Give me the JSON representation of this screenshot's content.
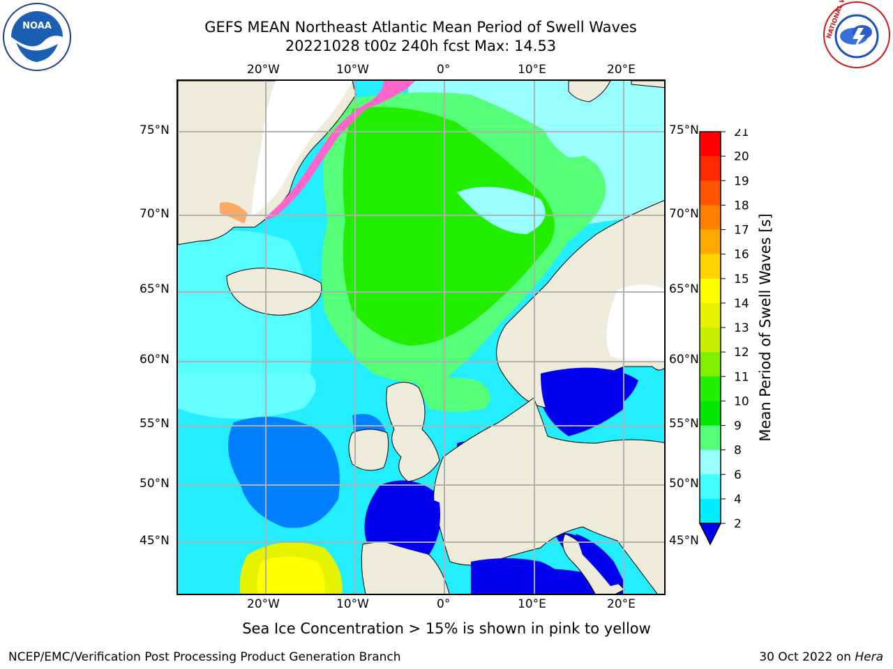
{
  "title": {
    "line1": "GEFS MEAN Northeast Atlantic Mean Period of Swell Waves",
    "line2": "20221028 t00z 240h fcst   Max: 14.53"
  },
  "map": {
    "lon_labels": [
      "20°W",
      "10°W",
      "0°",
      "10°E",
      "20°E"
    ],
    "lat_labels": [
      "75°N",
      "70°N",
      "65°N",
      "60°N",
      "55°N",
      "50°N",
      "45°N"
    ]
  },
  "colorbar": {
    "label": "Mean Period of Swell Waves [s]",
    "ticks": [
      "21",
      "20",
      "19",
      "18",
      "17",
      "16",
      "15",
      "14",
      "13",
      "12",
      "11",
      "10",
      "9",
      "8",
      "6",
      "4",
      "2"
    ],
    "colors": [
      "#ff0000",
      "#ff2a00",
      "#ff5500",
      "#ff7f00",
      "#ffaa00",
      "#ffd400",
      "#ffff00",
      "#e5f200",
      "#c7ef00",
      "#80f000",
      "#22ee00",
      "#00e600",
      "#55ff77",
      "#99ffff",
      "#44ffff",
      "#00eeff",
      "#0080ff"
    ],
    "under_color": "#0000ee"
  },
  "logos": {
    "noaa": "NOAA",
    "nws": "NATIONAL WEATHER SERVICE"
  },
  "note": "Sea Ice Concentration > 15% is shown in pink to yellow",
  "footer": {
    "left": "NCEP/EMC/Verification Post Processing Product Generation Branch",
    "right_date": "30 Oct 2022 on ",
    "right_machine": "Hera"
  }
}
